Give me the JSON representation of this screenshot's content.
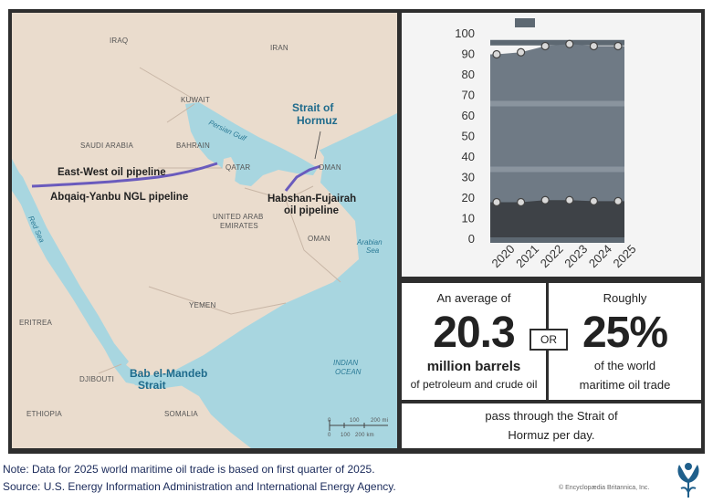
{
  "map": {
    "countries": [
      "IRAQ",
      "IRAN",
      "KUWAIT",
      "SAUDI ARABIA",
      "BAHRAIN",
      "QATAR",
      "UNITED ARAB",
      "EMIRATES",
      "OMAN",
      "OMAN",
      "YEMEN",
      "ERITREA",
      "DJIBOUTI",
      "ETHIOPIA",
      "SOMALIA"
    ],
    "water": [
      "Persian Gulf",
      "Red Sea",
      "Arabian",
      "Sea",
      "INDIAN",
      "OCEAN"
    ],
    "straits": [
      "Strait of",
      "Hormuz",
      "Bab el-Mandeb",
      "Strait"
    ],
    "pipelines": [
      "East-West oil pipeline",
      "Abqaiq-Yanbu NGL pipeline",
      "Habshan-Fujairah",
      "oil pipeline"
    ],
    "scale": [
      "0",
      "100",
      "200 mi",
      "0",
      "100",
      "200 km"
    ],
    "colors": {
      "land": "#eadccd",
      "water": "#a8d6e0",
      "pipeline": "#6a5bbd"
    }
  },
  "chart_data": {
    "type": "line",
    "categories": [
      "2020",
      "2021",
      "2022",
      "2023",
      "2024",
      "2025"
    ],
    "yticks": [
      "100",
      "90",
      "80",
      "70",
      "60",
      "50",
      "40",
      "30",
      "20",
      "10",
      "0"
    ],
    "ylim": [
      0,
      100
    ],
    "series": [
      {
        "values": [
          90,
          91,
          94,
          95,
          94,
          94
        ]
      },
      {
        "values": [
          18,
          18,
          19,
          19,
          18.5,
          18.5
        ]
      }
    ],
    "colors": {
      "upper": "#6f7a85",
      "lower": "#3e4247",
      "marker_fill": "#d9d9d9",
      "barrel": "#5d6872"
    }
  },
  "stats": {
    "left_top": "An average of",
    "left_big": "20.3",
    "left_unit": "million barrels",
    "left_sub": "of petroleum and crude oil",
    "or": "OR",
    "right_top": "Roughly",
    "right_big": "25%",
    "right_sub1": "of the world",
    "right_sub2": "maritime oil trade",
    "bottom1": "pass through the Strait of",
    "bottom2": "Hormuz per day."
  },
  "footnotes": {
    "note": "Note: Data for 2025 world maritime oil trade is based on first quarter of 2025.",
    "source": "Source: U.S. Energy Information Administration and International Energy Agency.",
    "credit": "© Encyclopædia Britannica, Inc."
  }
}
